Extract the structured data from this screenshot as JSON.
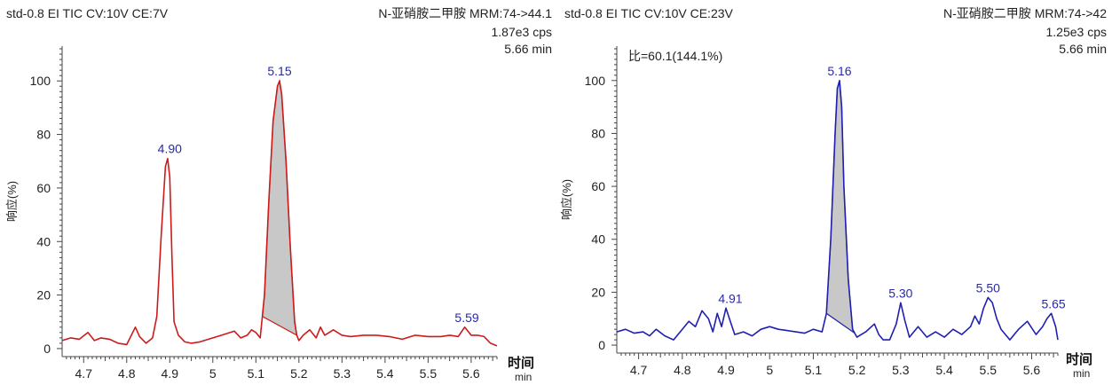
{
  "chart_data": [
    {
      "type": "line",
      "title": "std-0.8 EI TIC CV:10V CE:7V",
      "channel": "N-亚硝胺二甲胺 MRM:74->44.1",
      "intensity": "1.87e3 cps",
      "time": "5.66 min",
      "ratio_text": "",
      "ylabel": "响应(%)",
      "xlabel": "时间",
      "xunit": "min",
      "xlim": [
        4.65,
        5.66
      ],
      "ylim": [
        -3,
        113
      ],
      "xticks": [
        4.7,
        4.8,
        4.9,
        5,
        5.1,
        5.2,
        5.3,
        5.4,
        5.5,
        5.6
      ],
      "xtick_labels": [
        "4.7",
        "4.8",
        "4.9",
        "5",
        "5.1",
        "5.2",
        "5.3",
        "5.4",
        "5.5",
        "5.6"
      ],
      "yticks": [
        0,
        20,
        40,
        60,
        80,
        100
      ],
      "ytick_labels": [
        "0",
        "20",
        "40",
        "60",
        "80",
        "100"
      ],
      "line_color": "#cc1b1b",
      "fill_color": "#c8c8c8",
      "label_color": "#2a2aa8",
      "integrated_peak": {
        "start": 5.115,
        "end": 5.195
      },
      "peak_labels": [
        {
          "x": 4.9,
          "y": 71,
          "text": "4.90"
        },
        {
          "x": 5.155,
          "y": 100,
          "text": "5.15"
        },
        {
          "x": 5.59,
          "y": 8,
          "text": "5.59"
        }
      ],
      "x": [
        4.65,
        4.67,
        4.69,
        4.71,
        4.725,
        4.74,
        4.76,
        4.78,
        4.8,
        4.82,
        4.83,
        4.845,
        4.86,
        4.87,
        4.88,
        4.89,
        4.895,
        4.9,
        4.905,
        4.91,
        4.92,
        4.935,
        4.95,
        4.97,
        4.99,
        5.01,
        5.03,
        5.05,
        5.065,
        5.08,
        5.09,
        5.1,
        5.11,
        5.12,
        5.13,
        5.14,
        5.15,
        5.155,
        5.16,
        5.17,
        5.18,
        5.19,
        5.195,
        5.2,
        5.21,
        5.225,
        5.24,
        5.25,
        5.26,
        5.28,
        5.3,
        5.32,
        5.35,
        5.38,
        5.41,
        5.44,
        5.47,
        5.5,
        5.53,
        5.55,
        5.57,
        5.585,
        5.6,
        5.615,
        5.63,
        5.645,
        5.66
      ],
      "values": [
        3,
        4,
        3.5,
        6,
        3,
        4,
        3.5,
        2,
        1.5,
        8,
        4.5,
        2,
        4,
        12,
        42,
        68,
        71,
        64,
        35,
        10,
        5,
        2.5,
        2,
        2.5,
        3.5,
        4.5,
        5.5,
        6.5,
        4,
        5,
        7,
        6,
        4,
        20,
        55,
        85,
        98,
        100,
        95,
        70,
        38,
        10,
        5,
        3,
        5,
        7,
        4,
        8,
        5,
        7,
        5,
        4.5,
        5,
        5,
        4.5,
        3.5,
        5,
        4.5,
        4.5,
        5,
        4.5,
        8,
        5,
        5,
        4.5,
        2,
        1
      ]
    },
    {
      "type": "line",
      "title": "std-0.8 EI TIC CV:10V CE:23V",
      "channel": "N-亚硝胺二甲胺 MRM:74->42",
      "intensity": "1.25e3 cps",
      "time": "5.66 min",
      "ratio_text": "比=60.1(144.1%)",
      "ylabel": "响应(%)",
      "xlabel": "时间",
      "xunit": "min",
      "xlim": [
        4.65,
        5.66
      ],
      "ylim": [
        -3,
        113
      ],
      "xticks": [
        4.7,
        4.8,
        4.9,
        5,
        5.1,
        5.2,
        5.3,
        5.4,
        5.5,
        5.6
      ],
      "xtick_labels": [
        "4.7",
        "4.8",
        "4.9",
        "5",
        "5.1",
        "5.2",
        "5.3",
        "5.4",
        "5.5",
        "5.6"
      ],
      "yticks": [
        0,
        20,
        40,
        60,
        80,
        100
      ],
      "ytick_labels": [
        "0",
        "20",
        "40",
        "60",
        "80",
        "100"
      ],
      "line_color": "#2020b0",
      "fill_color": "#c8c8c8",
      "label_color": "#2a2aa8",
      "integrated_peak": {
        "start": 5.13,
        "end": 5.195
      },
      "peak_labels": [
        {
          "x": 4.91,
          "y": 14,
          "text": "4.91"
        },
        {
          "x": 5.16,
          "y": 100,
          "text": "5.16"
        },
        {
          "x": 5.3,
          "y": 16,
          "text": "5.30"
        },
        {
          "x": 5.5,
          "y": 18,
          "text": "5.50"
        },
        {
          "x": 5.65,
          "y": 12,
          "text": "5.65"
        }
      ],
      "x": [
        4.65,
        4.67,
        4.69,
        4.71,
        4.725,
        4.74,
        4.76,
        4.78,
        4.8,
        4.815,
        4.83,
        4.845,
        4.86,
        4.87,
        4.88,
        4.89,
        4.9,
        4.91,
        4.92,
        4.94,
        4.96,
        4.98,
        5.0,
        5.02,
        5.04,
        5.06,
        5.08,
        5.1,
        5.12,
        5.13,
        5.14,
        5.15,
        5.155,
        5.16,
        5.165,
        5.17,
        5.18,
        5.19,
        5.2,
        5.22,
        5.24,
        5.25,
        5.26,
        5.275,
        5.29,
        5.3,
        5.31,
        5.32,
        5.34,
        5.36,
        5.38,
        5.4,
        5.42,
        5.44,
        5.46,
        5.47,
        5.48,
        5.49,
        5.5,
        5.51,
        5.52,
        5.53,
        5.55,
        5.57,
        5.59,
        5.61,
        5.625,
        5.635,
        5.645,
        5.655,
        5.66
      ],
      "values": [
        5,
        6,
        4.5,
        5,
        3.5,
        6,
        3.5,
        2,
        6,
        9,
        7,
        13,
        10,
        5,
        12,
        7,
        14,
        9,
        4,
        5,
        3.5,
        6,
        7,
        6,
        5.5,
        5,
        4.5,
        6,
        5,
        12,
        40,
        80,
        97,
        100,
        90,
        60,
        25,
        6,
        3,
        5,
        8,
        4,
        2,
        2,
        8,
        16,
        9,
        3,
        7,
        3,
        5,
        3,
        6,
        4,
        7,
        11,
        8,
        14,
        18,
        16,
        10,
        6,
        2,
        6,
        9,
        4,
        7,
        10,
        12,
        7,
        2
      ]
    }
  ]
}
